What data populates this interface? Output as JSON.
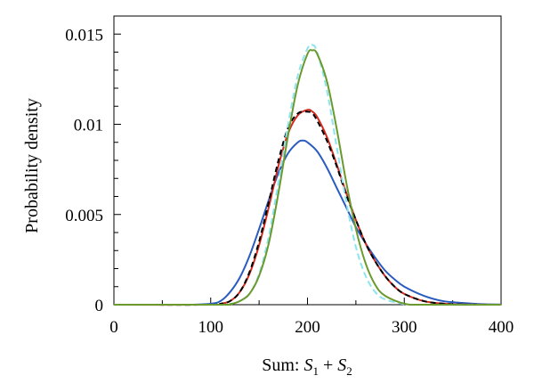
{
  "chart_data": {
    "type": "line",
    "xlabel_parts": {
      "prefix": "Sum: ",
      "s": "S",
      "sub1": "1",
      "plus": " + ",
      "sub2": "2"
    },
    "ylabel": "Probability density",
    "xlim": [
      0,
      400
    ],
    "ylim": [
      0,
      0.016
    ],
    "xticks": [
      0,
      100,
      200,
      300,
      400
    ],
    "yticks": [
      0,
      0.005,
      0.01,
      0.015
    ],
    "ytick_labels": [
      "0",
      "0.005",
      "0.01",
      "0.015"
    ],
    "grid": false,
    "series": [
      {
        "color": "#2a5bbf",
        "style": "solid",
        "x": [
          0,
          60,
          80,
          100,
          110,
          120,
          130,
          140,
          150,
          160,
          170,
          180,
          190,
          195,
          200,
          210,
          220,
          230,
          240,
          250,
          260,
          270,
          280,
          290,
          300,
          320,
          340,
          360,
          380,
          400
        ],
        "y": [
          0,
          0,
          0,
          5e-05,
          0.0002,
          0.0007,
          0.0015,
          0.0027,
          0.0042,
          0.0058,
          0.0073,
          0.0084,
          0.009,
          0.0091,
          0.009,
          0.0085,
          0.0076,
          0.0065,
          0.0054,
          0.0043,
          0.0034,
          0.0026,
          0.0019,
          0.0014,
          0.001,
          0.0005,
          0.0002,
          0.0001,
          3e-05,
          1e-05
        ]
      },
      {
        "color": "#d42a1e",
        "style": "solid",
        "x": [
          0,
          100,
          110,
          120,
          130,
          140,
          150,
          160,
          170,
          180,
          190,
          200,
          205,
          210,
          220,
          230,
          240,
          250,
          260,
          270,
          280,
          290,
          300,
          320,
          340,
          360,
          400
        ],
        "y": [
          0,
          0,
          5e-05,
          0.0002,
          0.0007,
          0.0017,
          0.0033,
          0.0054,
          0.0077,
          0.0095,
          0.0105,
          0.0108,
          0.0107,
          0.0104,
          0.0093,
          0.0078,
          0.0062,
          0.0047,
          0.0034,
          0.0024,
          0.0016,
          0.001,
          0.0006,
          0.0002,
          6e-05,
          1e-05,
          0
        ]
      },
      {
        "color": "#000000",
        "style": "dashed",
        "x": [
          0,
          100,
          110,
          120,
          130,
          140,
          150,
          160,
          170,
          180,
          190,
          200,
          205,
          210,
          220,
          230,
          240,
          250,
          260,
          270,
          280,
          290,
          300,
          320,
          340,
          360,
          400
        ],
        "y": [
          0,
          0,
          5e-05,
          0.0002,
          0.0007,
          0.0018,
          0.0035,
          0.0057,
          0.008,
          0.0098,
          0.0106,
          0.0107,
          0.0106,
          0.0102,
          0.0091,
          0.0077,
          0.0061,
          0.0047,
          0.0034,
          0.0024,
          0.0016,
          0.001,
          0.0006,
          0.0002,
          6e-05,
          1e-05,
          0
        ]
      },
      {
        "color": "#8ee4ee",
        "style": "dashed",
        "x": [
          0,
          110,
          120,
          130,
          140,
          150,
          160,
          170,
          180,
          190,
          200,
          205,
          210,
          220,
          230,
          240,
          250,
          260,
          270,
          280,
          300,
          320,
          400
        ],
        "y": [
          0,
          0,
          3e-05,
          0.0002,
          0.0006,
          0.0017,
          0.0038,
          0.0068,
          0.01,
          0.0127,
          0.0142,
          0.0144,
          0.014,
          0.0119,
          0.0088,
          0.0057,
          0.0032,
          0.0016,
          0.0007,
          0.0003,
          3e-05,
          0,
          0
        ]
      },
      {
        "color": "#6a9a2e",
        "style": "solid",
        "x": [
          0,
          110,
          120,
          130,
          140,
          150,
          160,
          170,
          180,
          190,
          200,
          205,
          210,
          220,
          230,
          240,
          250,
          260,
          270,
          280,
          300,
          320,
          400
        ],
        "y": [
          0,
          0,
          3e-05,
          0.0002,
          0.0006,
          0.0016,
          0.0034,
          0.0062,
          0.0094,
          0.0122,
          0.0139,
          0.0141,
          0.0139,
          0.0124,
          0.0098,
          0.0068,
          0.0042,
          0.0023,
          0.0011,
          0.0005,
          6e-05,
          0,
          0
        ]
      }
    ]
  }
}
